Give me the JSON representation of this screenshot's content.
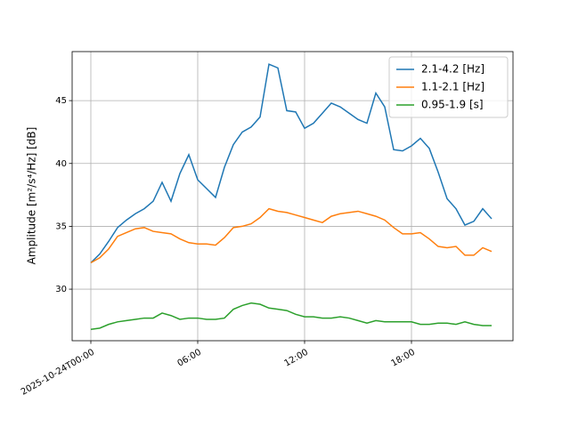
{
  "chart_data": {
    "type": "line",
    "y_label": "Amplitude [m²/s⁴/Hz] [dB]",
    "x": [
      "2025-10-24T00:00",
      "2025-10-24T00:30",
      "2025-10-24T01:00",
      "2025-10-24T01:30",
      "2025-10-24T02:00",
      "2025-10-24T02:30",
      "2025-10-24T03:00",
      "2025-10-24T03:30",
      "2025-10-24T04:00",
      "2025-10-24T04:30",
      "2025-10-24T05:00",
      "2025-10-24T05:30",
      "2025-10-24T06:00",
      "2025-10-24T06:30",
      "2025-10-24T07:00",
      "2025-10-24T07:30",
      "2025-10-24T08:00",
      "2025-10-24T08:30",
      "2025-10-24T09:00",
      "2025-10-24T09:30",
      "2025-10-24T10:00",
      "2025-10-24T10:30",
      "2025-10-24T11:00",
      "2025-10-24T11:30",
      "2025-10-24T12:00",
      "2025-10-24T12:30",
      "2025-10-24T13:00",
      "2025-10-24T13:30",
      "2025-10-24T14:00",
      "2025-10-24T14:30",
      "2025-10-24T15:00",
      "2025-10-24T15:30",
      "2025-10-24T16:00",
      "2025-10-24T16:30",
      "2025-10-24T17:00",
      "2025-10-24T17:30",
      "2025-10-24T18:00",
      "2025-10-24T18:30",
      "2025-10-24T19:00",
      "2025-10-24T19:30",
      "2025-10-24T20:00",
      "2025-10-24T20:30",
      "2025-10-24T21:00",
      "2025-10-24T21:30",
      "2025-10-24T22:00",
      "2025-10-24T22:30"
    ],
    "series": [
      {
        "name": "2.1-4.2 [Hz]",
        "color": "#1f77b4",
        "values": [
          32.1,
          32.8,
          33.8,
          34.9,
          35.5,
          36.0,
          36.4,
          37.0,
          38.5,
          37.0,
          39.2,
          40.7,
          38.7,
          38.0,
          37.3,
          39.7,
          41.5,
          42.5,
          42.9,
          43.7,
          47.9,
          47.6,
          44.2,
          44.1,
          42.8,
          43.2,
          44.0,
          44.8,
          44.5,
          44.0,
          43.5,
          43.2,
          45.6,
          44.5,
          41.1,
          41.0,
          41.4,
          42.0,
          41.2,
          39.3,
          37.2,
          36.4,
          35.1,
          35.4,
          36.4,
          35.6
        ]
      },
      {
        "name": "1.1-2.1 [Hz]",
        "color": "#ff7f0e",
        "values": [
          32.1,
          32.5,
          33.2,
          34.2,
          34.5,
          34.8,
          34.9,
          34.6,
          34.5,
          34.4,
          34.0,
          33.7,
          33.6,
          33.6,
          33.5,
          34.1,
          34.9,
          35.0,
          35.2,
          35.7,
          36.4,
          36.2,
          36.1,
          35.9,
          35.7,
          35.5,
          35.3,
          35.8,
          36.0,
          36.1,
          36.2,
          36.0,
          35.8,
          35.5,
          34.9,
          34.4,
          34.4,
          34.5,
          34.0,
          33.4,
          33.3,
          33.4,
          32.7,
          32.7,
          33.3,
          33.0
        ]
      },
      {
        "name": "0.95-1.9 [s]",
        "color": "#2ca02c",
        "values": [
          26.8,
          26.9,
          27.2,
          27.4,
          27.5,
          27.6,
          27.7,
          27.7,
          28.1,
          27.9,
          27.6,
          27.7,
          27.7,
          27.6,
          27.6,
          27.7,
          28.4,
          28.7,
          28.9,
          28.8,
          28.5,
          28.4,
          28.3,
          28.0,
          27.8,
          27.8,
          27.7,
          27.7,
          27.8,
          27.7,
          27.5,
          27.3,
          27.5,
          27.4,
          27.4,
          27.4,
          27.4,
          27.2,
          27.2,
          27.3,
          27.3,
          27.2,
          27.4,
          27.2,
          27.1,
          27.1
        ]
      }
    ],
    "xlim": [
      "2025-10-23T22:57",
      "2025-10-24T23:42"
    ],
    "xticks": [
      "2025-10-24T00:00",
      {
        "value": "2025-10-24T06:00",
        "label": "06:00"
      },
      {
        "value": "2025-10-24T12:00",
        "label": "12:00"
      },
      {
        "value": "2025-10-24T18:00",
        "label": "18:00"
      }
    ],
    "ylim": [
      25.9,
      48.9
    ],
    "yticks": [
      30,
      35,
      40,
      45
    ],
    "grid": true,
    "legend": "upper right"
  }
}
